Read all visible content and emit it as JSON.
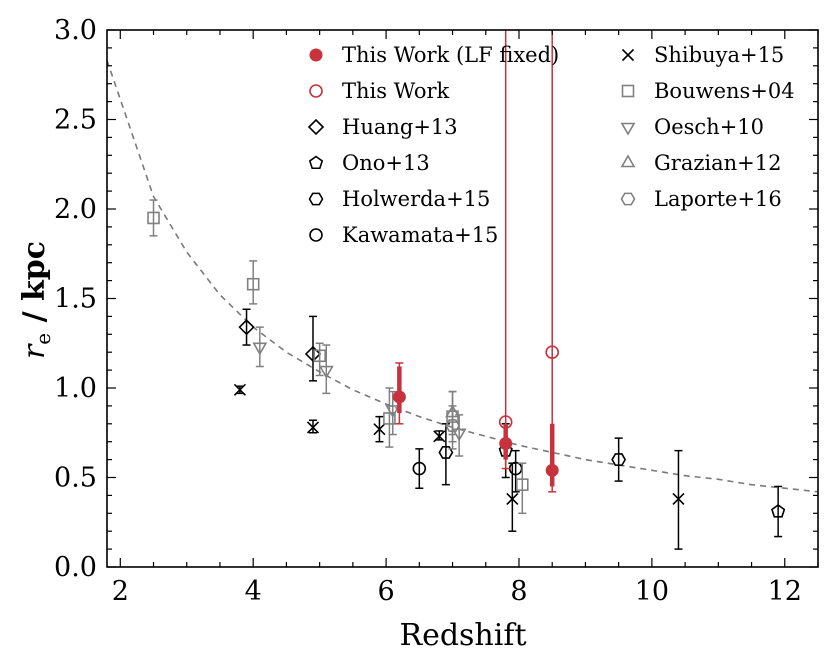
{
  "chart_data": {
    "type": "scatter",
    "xlabel": "Redshift",
    "ylabel_main": "r",
    "ylabel_sub": "e",
    "ylabel_unit": " / kpc",
    "xlim": [
      1.8,
      12.5
    ],
    "ylim": [
      0.0,
      3.0
    ],
    "xticks": [
      2,
      4,
      6,
      8,
      10,
      12
    ],
    "xtick_labels": [
      "2",
      "4",
      "6",
      "8",
      "10",
      "12"
    ],
    "yticks": [
      0.0,
      0.5,
      1.0,
      1.5,
      2.0,
      2.5,
      3.0
    ],
    "ytick_labels": [
      "0.0",
      "0.5",
      "1.0",
      "1.5",
      "2.0",
      "2.5",
      "3.0"
    ],
    "legend_position": "top-right",
    "colors": {
      "this_work": "#c8323c",
      "literature": "#000000",
      "other": "#808080",
      "curve": "#7a7a7a"
    },
    "fit_curve": {
      "style": "dashed",
      "x": [
        1.8,
        2.5,
        3,
        3.5,
        4,
        4.5,
        5,
        5.5,
        6,
        6.5,
        7,
        7.5,
        8,
        8.5,
        9,
        9.5,
        10,
        10.5,
        11,
        11.5,
        12,
        12.5
      ],
      "y": [
        2.83,
        2.07,
        1.76,
        1.52,
        1.34,
        1.2,
        1.09,
        0.99,
        0.91,
        0.84,
        0.78,
        0.73,
        0.68,
        0.64,
        0.6,
        0.57,
        0.54,
        0.51,
        0.49,
        0.46,
        0.44,
        0.42
      ]
    },
    "series": [
      {
        "name": "This Work (LF fixed)",
        "marker": "filled-circle",
        "color": "#c8323c",
        "points": [
          {
            "x": 6.2,
            "y": 0.95,
            "lo": 0.8,
            "hi": 1.14,
            "lo2": 0.86,
            "hi2": 1.12
          },
          {
            "x": 7.8,
            "y": 0.69,
            "lo": 0.55,
            "hi": 3.0,
            "lo2": 0.6,
            "hi2": 0.8
          },
          {
            "x": 8.5,
            "y": 0.54,
            "lo": 0.42,
            "hi": 3.0,
            "lo2": 0.45,
            "hi2": 0.8
          }
        ]
      },
      {
        "name": "This Work",
        "marker": "open-circle",
        "color": "#c8323c",
        "points": [
          {
            "x": 7.8,
            "y": 0.81
          },
          {
            "x": 8.5,
            "y": 1.2
          }
        ]
      },
      {
        "name": "Huang+13",
        "marker": "diamond",
        "color": "#000000",
        "points": [
          {
            "x": 3.9,
            "y": 1.34,
            "lo": 1.24,
            "hi": 1.44
          },
          {
            "x": 4.9,
            "y": 1.19,
            "lo": 1.04,
            "hi": 1.4
          }
        ]
      },
      {
        "name": "Ono+13",
        "marker": "pentagon",
        "color": "#000000",
        "points": [
          {
            "x": 7.8,
            "y": 0.65,
            "lo": 0.5,
            "hi": 0.8
          },
          {
            "x": 11.9,
            "y": 0.31,
            "lo": 0.17,
            "hi": 0.45
          }
        ]
      },
      {
        "name": "Holwerda+15",
        "marker": "hexagon",
        "color": "#000000",
        "points": [
          {
            "x": 6.9,
            "y": 0.64,
            "lo": 0.46,
            "hi": 0.8
          },
          {
            "x": 9.5,
            "y": 0.6,
            "lo": 0.48,
            "hi": 0.72
          }
        ]
      },
      {
        "name": "Kawamata+15",
        "marker": "open-circle",
        "color": "#000000",
        "points": [
          {
            "x": 6.5,
            "y": 0.55,
            "lo": 0.44,
            "hi": 0.66
          },
          {
            "x": 7.95,
            "y": 0.55,
            "lo": 0.42,
            "hi": 0.65
          }
        ]
      },
      {
        "name": "Shibuya+15",
        "marker": "x",
        "color": "#000000",
        "points": [
          {
            "x": 3.8,
            "y": 0.99,
            "lo": 0.97,
            "hi": 1.01
          },
          {
            "x": 4.9,
            "y": 0.78,
            "lo": 0.75,
            "hi": 0.82
          },
          {
            "x": 5.9,
            "y": 0.77,
            "lo": 0.7,
            "hi": 0.84
          },
          {
            "x": 6.8,
            "y": 0.73,
            "lo": 0.71,
            "hi": 0.76
          },
          {
            "x": 7.9,
            "y": 0.38,
            "lo": 0.2,
            "hi": 0.58
          },
          {
            "x": 10.4,
            "y": 0.38,
            "lo": 0.1,
            "hi": 0.65
          }
        ]
      },
      {
        "name": "Bouwens+04",
        "marker": "square",
        "color": "#808080",
        "points": [
          {
            "x": 2.5,
            "y": 1.95,
            "lo": 1.85,
            "hi": 2.05
          },
          {
            "x": 4.0,
            "y": 1.58,
            "lo": 1.47,
            "hi": 1.71
          },
          {
            "x": 5.0,
            "y": 1.18,
            "lo": 1.07,
            "hi": 1.25
          },
          {
            "x": 6.05,
            "y": 0.83,
            "lo": 0.67,
            "hi": 1.0
          },
          {
            "x": 7.0,
            "y": 0.84,
            "lo": 0.7,
            "hi": 0.98
          },
          {
            "x": 8.05,
            "y": 0.46,
            "lo": 0.3,
            "hi": 0.58
          }
        ]
      },
      {
        "name": "Oesch+10",
        "marker": "triangle-down",
        "color": "#808080",
        "points": [
          {
            "x": 4.1,
            "y": 1.23,
            "lo": 1.12,
            "hi": 1.34
          },
          {
            "x": 5.1,
            "y": 1.1,
            "lo": 0.97,
            "hi": 1.24
          },
          {
            "x": 6.1,
            "y": 0.88,
            "lo": 0.74,
            "hi": 0.98
          },
          {
            "x": 7.1,
            "y": 0.75,
            "lo": 0.62,
            "hi": 0.85
          }
        ]
      },
      {
        "name": "Grazian+12",
        "marker": "triangle-up",
        "color": "#808080",
        "points": [
          {
            "x": 7.0,
            "y": 0.86,
            "lo": 0.74,
            "hi": 0.98
          }
        ]
      },
      {
        "name": "Laporte+16",
        "marker": "hexagon",
        "color": "#808080",
        "points": [
          {
            "x": 7.0,
            "y": 0.79,
            "lo": 0.66,
            "hi": 0.9
          }
        ]
      }
    ],
    "legend": [
      {
        "label": "This Work (LF fixed)",
        "marker": "filled-circle",
        "color": "#c8323c",
        "col": 0,
        "row": 0
      },
      {
        "label": "This Work",
        "marker": "open-circle",
        "color": "#c8323c",
        "col": 0,
        "row": 1
      },
      {
        "label": "Huang+13",
        "marker": "diamond",
        "color": "#000000",
        "col": 0,
        "row": 2
      },
      {
        "label": "Ono+13",
        "marker": "pentagon",
        "color": "#000000",
        "col": 0,
        "row": 3
      },
      {
        "label": "Holwerda+15",
        "marker": "hexagon",
        "color": "#000000",
        "col": 0,
        "row": 4
      },
      {
        "label": "Kawamata+15",
        "marker": "open-circle",
        "color": "#000000",
        "col": 0,
        "row": 5
      },
      {
        "label": "Shibuya+15",
        "marker": "x",
        "color": "#000000",
        "col": 1,
        "row": 0
      },
      {
        "label": "Bouwens+04",
        "marker": "square",
        "color": "#808080",
        "col": 1,
        "row": 1
      },
      {
        "label": "Oesch+10",
        "marker": "triangle-down",
        "color": "#808080",
        "col": 1,
        "row": 2
      },
      {
        "label": "Grazian+12",
        "marker": "triangle-up",
        "color": "#808080",
        "col": 1,
        "row": 3
      },
      {
        "label": "Laporte+16",
        "marker": "hexagon",
        "color": "#808080",
        "col": 1,
        "row": 4
      }
    ]
  }
}
